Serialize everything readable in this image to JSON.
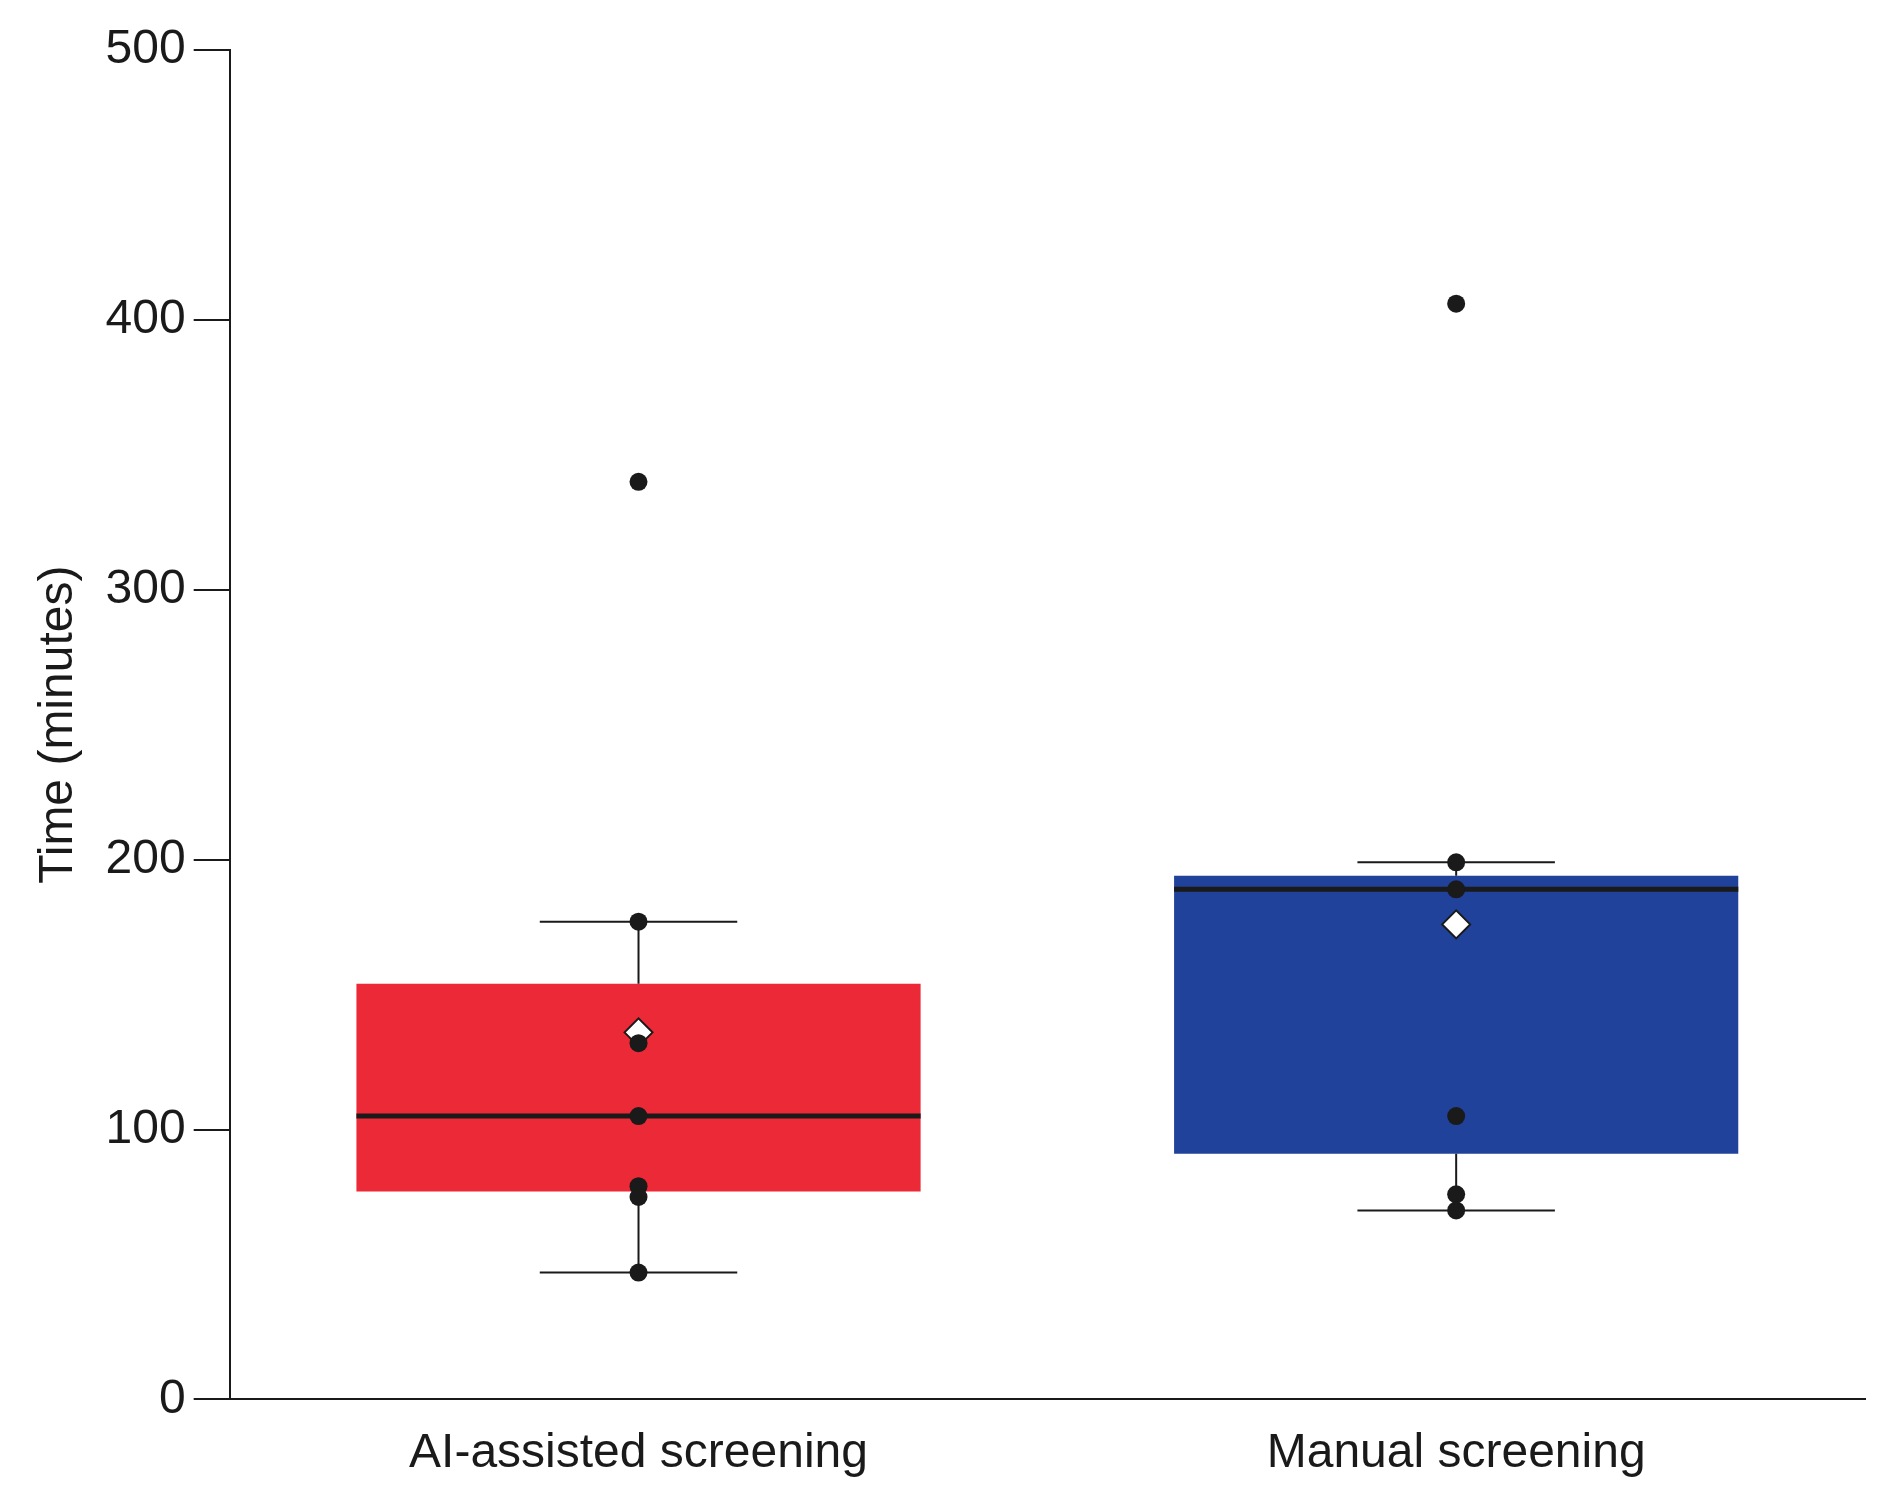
{
  "chart_data": {
    "type": "box",
    "ylabel": "Time (minutes)",
    "categories": [
      "AI-assisted screening",
      "Manual screening"
    ],
    "ylim": [
      0,
      500
    ],
    "yticks": [
      0,
      100,
      200,
      300,
      400,
      500
    ],
    "series": [
      {
        "type": "box",
        "colors": [
          "#ec2936",
          "#21429a"
        ],
        "boxes": [
          {
            "low": 47,
            "q1": 77,
            "median": 105,
            "q3": 154,
            "high": 177,
            "mean": 136
          },
          {
            "low": 70,
            "q1": 91,
            "median": 189,
            "q3": 194,
            "high": 199,
            "mean": 176
          }
        ]
      },
      {
        "type": "scatter",
        "color": "#1a1a1a",
        "marker": "circle",
        "x": [
          "AI-assisted screening",
          "AI-assisted screening",
          "AI-assisted screening",
          "AI-assisted screening",
          "AI-assisted screening",
          "AI-assisted screening",
          "AI-assisted screening",
          "Manual screening",
          "Manual screening",
          "Manual screening",
          "Manual screening",
          "Manual screening",
          "Manual screening"
        ],
        "values": [
          340,
          177,
          132,
          105,
          79,
          75,
          47,
          406,
          199,
          189,
          105,
          76,
          70
        ]
      }
    ]
  }
}
